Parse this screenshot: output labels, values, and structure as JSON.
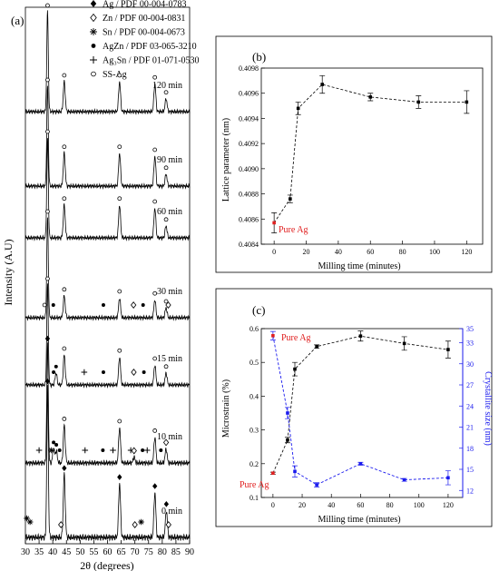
{
  "panel_a": {
    "label": "(a)",
    "xlabel": "2θ (degrees)",
    "ylabel": "Intensity (A.U)",
    "legend": [
      {
        "marker": "filled-diamond",
        "text": "Ag / PDF 00-004-0783"
      },
      {
        "marker": "open-diamond",
        "text": "Zn / PDF 00-004-0831"
      },
      {
        "marker": "asterisk",
        "text": "Sn / PDF 00-004-0673"
      },
      {
        "marker": "filled-circle",
        "text": "AgZn / PDF 03-065-3210"
      },
      {
        "marker": "plus",
        "text": "Ag₃Sn / PDF 01-071-0530"
      },
      {
        "marker": "open-circle",
        "text": "SS-Ag"
      }
    ]
  },
  "panel_b": {
    "label": "(b)",
    "xlabel": "Milling time (minutes)",
    "ylabel": "Lattice parameter (nm)",
    "annotation": "Pure Ag"
  },
  "panel_c": {
    "label": "(c)",
    "xlabel": "Milling time (minutes)",
    "ylabel_left": "Microstrain (%)",
    "ylabel_right": "Crystallite size (nm)",
    "annotation_top": "Pure Ag",
    "annotation_bottom": "Pure Ag"
  },
  "colors": {
    "axis": "#000000",
    "highlight": "#e02020",
    "secondary": "#1a1aee",
    "series": "#000000"
  },
  "chart_data": [
    {
      "type": "line",
      "panel": "a",
      "xlim": [
        30,
        90
      ],
      "xticks": [
        "30",
        "35",
        "40",
        "45",
        "50",
        "55",
        "60",
        "65",
        "70",
        "75",
        "80",
        "85",
        "90"
      ],
      "xlabel": "2θ (degrees)",
      "ylabel": "Intensity (A.U)",
      "series": [
        {
          "name": "120 min",
          "peaks": [
            {
              "x": 38.1,
              "h": 1.0
            },
            {
              "x": 44.2,
              "h": 0.3
            },
            {
              "x": 64.4,
              "h": 0.3
            },
            {
              "x": 77.3,
              "h": 0.28
            },
            {
              "x": 81.4,
              "h": 0.13
            }
          ],
          "markers": [
            {
              "x": 38.1,
              "m": "open-circle"
            },
            {
              "x": 44.2,
              "m": "open-circle"
            },
            {
              "x": 64.4,
              "m": "open-circle"
            },
            {
              "x": 77.3,
              "m": "open-circle"
            },
            {
              "x": 81.4,
              "m": "open-circle"
            }
          ]
        },
        {
          "name": "90 min",
          "peaks": [
            {
              "x": 38.1,
              "h": 1.0
            },
            {
              "x": 44.2,
              "h": 0.33
            },
            {
              "x": 64.4,
              "h": 0.33
            },
            {
              "x": 77.3,
              "h": 0.3
            },
            {
              "x": 81.4,
              "h": 0.12
            }
          ],
          "markers": [
            {
              "x": 38.1,
              "m": "open-circle"
            },
            {
              "x": 44.2,
              "m": "open-circle"
            },
            {
              "x": 64.4,
              "m": "open-circle"
            },
            {
              "x": 77.3,
              "m": "open-circle"
            },
            {
              "x": 81.4,
              "m": "open-circle"
            }
          ]
        },
        {
          "name": "60 min",
          "peaks": [
            {
              "x": 38.1,
              "h": 1.0
            },
            {
              "x": 44.2,
              "h": 0.33
            },
            {
              "x": 64.4,
              "h": 0.33
            },
            {
              "x": 77.3,
              "h": 0.3
            },
            {
              "x": 81.4,
              "h": 0.12
            }
          ],
          "markers": [
            {
              "x": 38.1,
              "m": "open-circle"
            },
            {
              "x": 44.2,
              "m": "open-circle"
            },
            {
              "x": 64.4,
              "m": "open-circle"
            },
            {
              "x": 77.3,
              "m": "open-circle"
            },
            {
              "x": 81.4,
              "m": "open-circle"
            }
          ]
        },
        {
          "name": "30 min",
          "peaks": [
            {
              "x": 38.1,
              "h": 1.0
            },
            {
              "x": 44.2,
              "h": 0.22
            },
            {
              "x": 64.4,
              "h": 0.2
            },
            {
              "x": 77.3,
              "h": 0.18
            },
            {
              "x": 81.4,
              "h": 0.1
            }
          ],
          "markers": [
            {
              "x": 37.0,
              "m": "open-circle"
            },
            {
              "x": 38.1,
              "m": "open-circle"
            },
            {
              "x": 40.2,
              "m": "filled-circle"
            },
            {
              "x": 44.2,
              "m": "open-circle"
            },
            {
              "x": 58.5,
              "m": "filled-circle"
            },
            {
              "x": 64.4,
              "m": "open-circle"
            },
            {
              "x": 69.5,
              "m": "open-diamond"
            },
            {
              "x": 73.0,
              "m": "filled-circle"
            },
            {
              "x": 77.3,
              "m": "open-circle"
            },
            {
              "x": 81.4,
              "m": "open-circle"
            },
            {
              "x": 82.2,
              "m": "open-diamond"
            }
          ]
        },
        {
          "name": "15 min",
          "peaks": [
            {
              "x": 38.1,
              "h": 1.0
            },
            {
              "x": 41.2,
              "h": 0.12
            },
            {
              "x": 44.2,
              "h": 0.3
            },
            {
              "x": 64.4,
              "h": 0.28
            },
            {
              "x": 77.3,
              "h": 0.2
            },
            {
              "x": 81.4,
              "h": 0.12
            }
          ],
          "markers": [
            {
              "x": 38.1,
              "m": "open-circle"
            },
            {
              "x": 40.3,
              "m": "filled-circle"
            },
            {
              "x": 41.2,
              "m": "filled-circle"
            },
            {
              "x": 44.2,
              "m": "open-circle"
            },
            {
              "x": 51.5,
              "m": "plus"
            },
            {
              "x": 58.5,
              "m": "filled-circle"
            },
            {
              "x": 64.4,
              "m": "open-circle"
            },
            {
              "x": 69.6,
              "m": "open-diamond"
            },
            {
              "x": 73.3,
              "m": "filled-circle"
            },
            {
              "x": 77.3,
              "m": "open-circle"
            },
            {
              "x": 81.4,
              "m": "open-circle"
            }
          ]
        },
        {
          "name": "10 min",
          "peaks": [
            {
              "x": 38.1,
              "h": 1.0
            },
            {
              "x": 40.3,
              "h": 0.12
            },
            {
              "x": 41.3,
              "h": 0.1
            },
            {
              "x": 44.2,
              "h": 0.32
            },
            {
              "x": 64.4,
              "h": 0.3
            },
            {
              "x": 69.7,
              "h": 0.05
            },
            {
              "x": 77.3,
              "h": 0.22
            },
            {
              "x": 81.4,
              "h": 0.12
            }
          ],
          "markers": [
            {
              "x": 35.0,
              "m": "plus"
            },
            {
              "x": 38.1,
              "m": "filled-diamond"
            },
            {
              "x": 39.5,
              "m": "asterisk"
            },
            {
              "x": 40.3,
              "m": "filled-circle"
            },
            {
              "x": 41.3,
              "m": "filled-circle"
            },
            {
              "x": 42.5,
              "m": "filled-circle"
            },
            {
              "x": 44.2,
              "m": "open-circle"
            },
            {
              "x": 51.8,
              "m": "plus"
            },
            {
              "x": 58.3,
              "m": "filled-circle"
            },
            {
              "x": 62.0,
              "m": "plus"
            },
            {
              "x": 64.4,
              "m": "open-circle"
            },
            {
              "x": 68.5,
              "m": "plus"
            },
            {
              "x": 69.7,
              "m": "open-diamond"
            },
            {
              "x": 72.8,
              "m": "filled-circle"
            },
            {
              "x": 74.5,
              "m": "plus"
            },
            {
              "x": 77.3,
              "m": "open-circle"
            },
            {
              "x": 79.5,
              "m": "filled-circle"
            },
            {
              "x": 81.4,
              "m": "open-diamond"
            }
          ]
        },
        {
          "name": "0 min",
          "peaks": [
            {
              "x": 38.1,
              "h": 1.0
            },
            {
              "x": 44.2,
              "h": 0.42
            },
            {
              "x": 64.4,
              "h": 0.36
            },
            {
              "x": 77.3,
              "h": 0.3
            },
            {
              "x": 81.5,
              "h": 0.18
            }
          ],
          "markers": [
            {
              "x": 30.5,
              "m": "asterisk"
            },
            {
              "x": 31.7,
              "m": "asterisk"
            },
            {
              "x": 38.1,
              "m": "filled-diamond"
            },
            {
              "x": 43.0,
              "m": "open-diamond"
            },
            {
              "x": 44.2,
              "m": "filled-diamond"
            },
            {
              "x": 64.4,
              "m": "filled-diamond"
            },
            {
              "x": 70.0,
              "m": "open-diamond"
            },
            {
              "x": 72.3,
              "m": "asterisk"
            },
            {
              "x": 77.3,
              "m": "filled-diamond"
            },
            {
              "x": 81.5,
              "m": "filled-diamond"
            },
            {
              "x": 82.3,
              "m": "open-diamond"
            }
          ]
        }
      ]
    },
    {
      "type": "line",
      "panel": "b",
      "xlim": [
        -8,
        130
      ],
      "ylim": [
        0.4084,
        0.4098
      ],
      "xticks": [
        0,
        20,
        40,
        60,
        80,
        100,
        120
      ],
      "yticks": [
        "0.4084",
        "0.4086",
        "0.4088",
        "0.4090",
        "0.4092",
        "0.4094",
        "0.4096",
        "0.4098"
      ],
      "xlabel": "Milling time (minutes)",
      "ylabel": "Lattice parameter (nm)",
      "series": [
        {
          "x": [
            0,
            10,
            15,
            30,
            60,
            90,
            120
          ],
          "y": [
            0.40857,
            0.40876,
            0.40948,
            0.40967,
            0.40957,
            0.40953,
            0.40953
          ],
          "err": [
            8e-05,
            3e-05,
            5e-05,
            7e-05,
            3e-05,
            5e-05,
            9e-05
          ]
        }
      ]
    },
    {
      "type": "line",
      "panel": "c",
      "xlim": [
        -8,
        130
      ],
      "ylim": [
        0.1,
        0.6
      ],
      "ylim_right": [
        11,
        35
      ],
      "xticks": [
        0,
        20,
        40,
        60,
        80,
        100,
        120
      ],
      "yticks": [
        "0.1",
        "0.2",
        "0.3",
        "0.4",
        "0.5",
        "0.6"
      ],
      "yticks_right": [
        "12",
        "15",
        "18",
        "21",
        "24",
        "27",
        "30",
        "33",
        "35"
      ],
      "xlabel": "Milling time (minutes)",
      "ylabel": "Microstrain (%)",
      "ylabel_right": "Crystallite size (nm)",
      "series": [
        {
          "axis": "left",
          "x": [
            0,
            10,
            15,
            30,
            60,
            90,
            120
          ],
          "y": [
            0.172,
            0.27,
            0.48,
            0.547,
            0.578,
            0.556,
            0.538
          ],
          "err": [
            0.003,
            0.008,
            0.02,
            0.005,
            0.015,
            0.02,
            0.025
          ]
        },
        {
          "axis": "right",
          "x": [
            0,
            10,
            15,
            30,
            60,
            90,
            120
          ],
          "y": [
            34.0,
            23.0,
            14.7,
            12.8,
            15.8,
            13.5,
            13.8
          ],
          "err": [
            0.6,
            0.8,
            0.8,
            0.3,
            0.2,
            0.2,
            1.0
          ]
        }
      ]
    }
  ]
}
